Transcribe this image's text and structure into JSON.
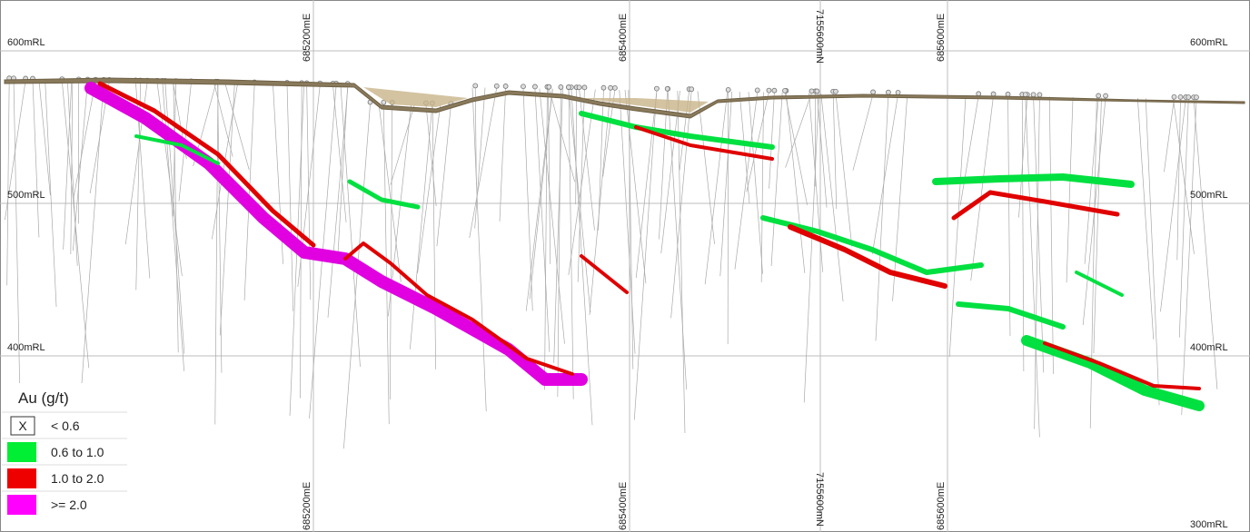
{
  "grid": {
    "levels": [
      "600mRL",
      "500mRL",
      "400mRL",
      "300mRL"
    ],
    "eastings": [
      "685200mE",
      "685400mE",
      "685600mE"
    ],
    "northing": "7155600mN"
  },
  "legend": {
    "title": "Au (g/t)",
    "items": [
      {
        "swatch": "X",
        "label": "< 0.6"
      },
      {
        "color": "#00ee33",
        "label": "0.6 to 1.0"
      },
      {
        "color": "#ee0000",
        "label": "1.0 to 2.0"
      },
      {
        "color": "#ff00ff",
        "label": ">= 2.0"
      }
    ]
  }
}
